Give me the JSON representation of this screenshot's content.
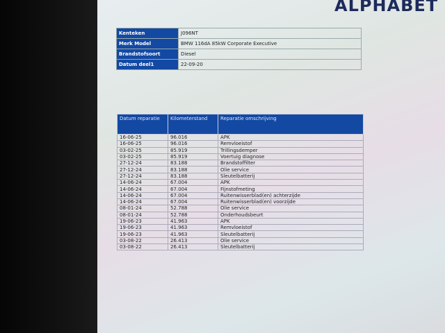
{
  "logo": "ALPHABET",
  "vehicle": [
    {
      "label": "Kenteken",
      "value": "J096NT"
    },
    {
      "label": "Merk Model",
      "value": "BMW 116dA 85kW Corporate Executive"
    },
    {
      "label": "Brandstofsoort",
      "value": "Diesel"
    },
    {
      "label": "Datum deel1",
      "value": "22-09-20"
    }
  ],
  "repairs": {
    "headers": [
      "Datum reparatie",
      "Kilometerstand",
      "Reparatie omschrijving"
    ],
    "rows": [
      [
        "16-06-25",
        "96.016",
        "APK"
      ],
      [
        "16-06-25",
        "96.016",
        "Remvloeistof"
      ],
      [
        "03-02-25",
        "85.919",
        "Trillingsdemper"
      ],
      [
        "03-02-25",
        "85.919",
        "Voertuig diagnose"
      ],
      [
        "27-12-24",
        "83.188",
        "Brandstoffilter"
      ],
      [
        "27-12-24",
        "83.188",
        "Olie service"
      ],
      [
        "27-12-24",
        "83.188",
        "Sleutelbatterij"
      ],
      [
        "14-06-24",
        "67.004",
        "APK"
      ],
      [
        "14-06-24",
        "67.004",
        "Fijnstofmeting"
      ],
      [
        "14-06-24",
        "67.004",
        "Ruitenwisserblad(en) achterzijde"
      ],
      [
        "14-06-24",
        "67.004",
        "Ruitenwisserblad(en) voorzijde"
      ],
      [
        "08-01-24",
        "52.788",
        "Olie service"
      ],
      [
        "08-01-24",
        "52.788",
        "Onderhoudsbeurt"
      ],
      [
        "19-06-23",
        "41.963",
        "APK"
      ],
      [
        "19-06-23",
        "41.963",
        "Remvloeistof"
      ],
      [
        "19-06-23",
        "41.963",
        "Sleutelbatterij"
      ],
      [
        "03-08-22",
        "26.413",
        "Olie service"
      ],
      [
        "03-08-22",
        "26.413",
        "Sleutelbatterij"
      ]
    ]
  }
}
